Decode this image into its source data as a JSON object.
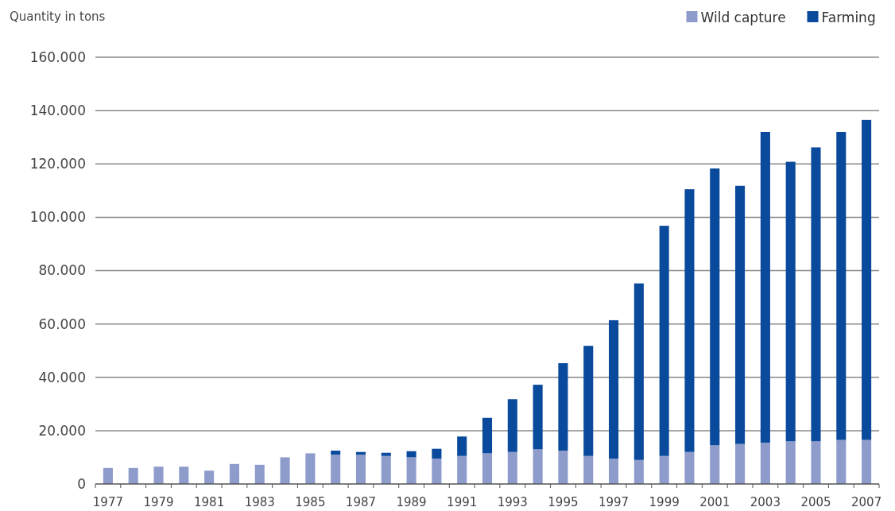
{
  "chart_data": {
    "type": "bar",
    "ylabel": "Quantity in tons",
    "stacked": true,
    "grid": "y",
    "legend": "top right",
    "categories": [
      "1977",
      null,
      "1979",
      null,
      "1981",
      null,
      "1983",
      null,
      "1985",
      null,
      "1987",
      null,
      "1989",
      null,
      "1991",
      null,
      "1993",
      null,
      "1995",
      null,
      "1997",
      null,
      "1999",
      null,
      "2001",
      null,
      "2003",
      null,
      "2005",
      null,
      "2007"
    ],
    "ylim": [
      0,
      160000
    ],
    "yticks": [
      {
        "value": 0,
        "label": "0"
      },
      {
        "value": 20000,
        "label": "20.000"
      },
      {
        "value": 40000,
        "label": "40.000"
      },
      {
        "value": 60000,
        "label": "60.000"
      },
      {
        "value": 80000,
        "label": "80.000"
      },
      {
        "value": 100000,
        "label": "100.000"
      },
      {
        "value": 120000,
        "label": "120.000"
      },
      {
        "value": 140000,
        "label": "140.000"
      },
      {
        "value": 160000,
        "label": "160.000"
      }
    ],
    "series": [
      {
        "name": "Wild capture",
        "color": "#8e9ccc",
        "values": [
          6000,
          6000,
          6500,
          6500,
          5000,
          7500,
          7200,
          10000,
          11500,
          11000,
          11000,
          10500,
          10000,
          9500,
          10500,
          11500,
          12000,
          13000,
          12500,
          10500,
          9500,
          9000,
          10500,
          12000,
          14500,
          15000,
          15500,
          16000,
          16000,
          16500,
          16500
        ]
      },
      {
        "name": "Farming",
        "color": "#0a4a9c",
        "values": [
          0,
          0,
          0,
          0,
          0,
          0,
          0,
          0,
          0,
          1500,
          1000,
          1200,
          2300,
          3700,
          7300,
          13300,
          19800,
          24200,
          32800,
          41300,
          51900,
          66200,
          86300,
          98500,
          103800,
          96800,
          116500,
          104800,
          110200,
          115500,
          120000
        ]
      }
    ]
  }
}
